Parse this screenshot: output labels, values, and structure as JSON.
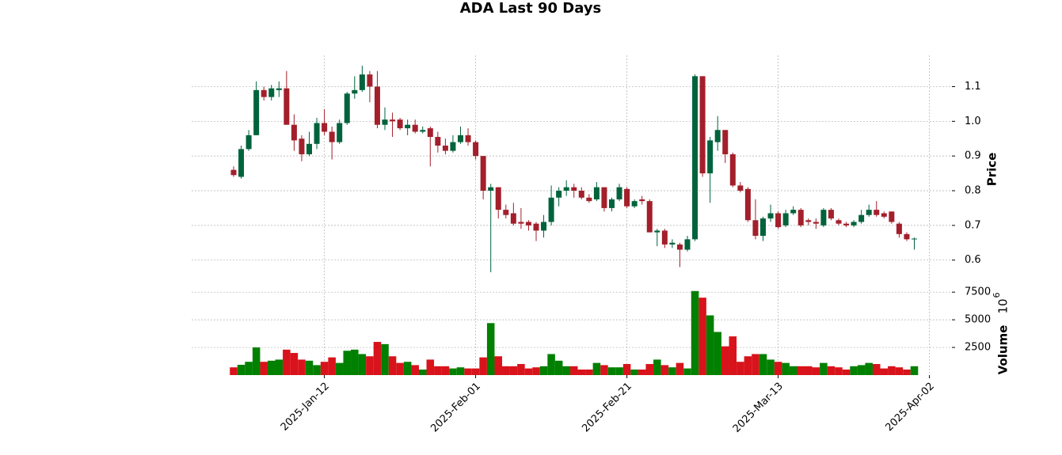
{
  "chart_data": {
    "type": "candlestick",
    "title": "ADA Last 90 Days",
    "ylabel": "Price",
    "y2label": "Volume",
    "y2label_base": "10",
    "y2label_exponent": "6",
    "x": [
      "2024-12-31",
      "2025-01-01",
      "2025-01-02",
      "2025-01-03",
      "2025-01-04",
      "2025-01-05",
      "2025-01-06",
      "2025-01-07",
      "2025-01-08",
      "2025-01-09",
      "2025-01-10",
      "2025-01-11",
      "2025-01-12",
      "2025-01-13",
      "2025-01-14",
      "2025-01-15",
      "2025-01-16",
      "2025-01-17",
      "2025-01-18",
      "2025-01-19",
      "2025-01-20",
      "2025-01-21",
      "2025-01-22",
      "2025-01-23",
      "2025-01-24",
      "2025-01-25",
      "2025-01-26",
      "2025-01-27",
      "2025-01-28",
      "2025-01-29",
      "2025-01-30",
      "2025-01-31",
      "2025-02-01",
      "2025-02-02",
      "2025-02-03",
      "2025-02-04",
      "2025-02-05",
      "2025-02-06",
      "2025-02-07",
      "2025-02-08",
      "2025-02-09",
      "2025-02-10",
      "2025-02-11",
      "2025-02-12",
      "2025-02-13",
      "2025-02-14",
      "2025-02-15",
      "2025-02-16",
      "2025-02-17",
      "2025-02-18",
      "2025-02-19",
      "2025-02-20",
      "2025-02-21",
      "2025-02-22",
      "2025-02-23",
      "2025-02-24",
      "2025-02-25",
      "2025-02-26",
      "2025-02-27",
      "2025-02-28",
      "2025-03-01",
      "2025-03-02",
      "2025-03-03",
      "2025-03-04",
      "2025-03-05",
      "2025-03-06",
      "2025-03-07",
      "2025-03-08",
      "2025-03-09",
      "2025-03-10",
      "2025-03-11",
      "2025-03-12",
      "2025-03-13",
      "2025-03-14",
      "2025-03-15",
      "2025-03-16",
      "2025-03-17",
      "2025-03-18",
      "2025-03-19",
      "2025-03-20",
      "2025-03-21",
      "2025-03-22",
      "2025-03-23",
      "2025-03-24",
      "2025-03-25",
      "2025-03-26",
      "2025-03-27",
      "2025-03-28",
      "2025-03-29",
      "2025-03-30",
      "2025-03-31"
    ],
    "open": [
      0.86,
      0.84,
      0.92,
      0.96,
      1.09,
      1.07,
      1.09,
      1.095,
      0.99,
      0.95,
      0.905,
      0.935,
      0.995,
      0.97,
      0.94,
      0.995,
      1.08,
      1.09,
      1.135,
      1.1,
      0.99,
      1.005,
      1.005,
      0.98,
      0.99,
      0.97,
      0.98,
      0.955,
      0.93,
      0.915,
      0.94,
      0.96,
      0.94,
      0.9,
      0.8,
      0.81,
      0.745,
      0.735,
      0.71,
      0.71,
      0.705,
      0.685,
      0.71,
      0.78,
      0.8,
      0.81,
      0.8,
      0.78,
      0.775,
      0.81,
      0.75,
      0.775,
      0.805,
      0.755,
      0.775,
      0.77,
      0.68,
      0.685,
      0.645,
      0.645,
      0.63,
      0.66,
      1.13,
      0.85,
      0.94,
      0.975,
      0.905,
      0.815,
      0.805,
      0.715,
      0.67,
      0.72,
      0.735,
      0.7,
      0.735,
      0.745,
      0.715,
      0.71,
      0.7,
      0.745,
      0.715,
      0.705,
      0.7,
      0.71,
      0.73,
      0.745,
      0.735,
      0.74,
      0.705,
      0.675,
      0.66
    ],
    "high": [
      0.87,
      0.93,
      0.975,
      1.115,
      1.1,
      1.105,
      1.115,
      1.145,
      1.02,
      0.96,
      0.97,
      1.01,
      1.035,
      0.985,
      1.005,
      1.085,
      1.13,
      1.16,
      1.145,
      1.145,
      1.04,
      1.025,
      1.01,
      1.005,
      1.005,
      0.985,
      0.985,
      0.97,
      0.95,
      0.96,
      0.985,
      0.98,
      0.945,
      0.9,
      0.82,
      0.81,
      0.76,
      0.765,
      0.75,
      0.715,
      0.71,
      0.73,
      0.815,
      0.81,
      0.83,
      0.82,
      0.81,
      0.79,
      0.825,
      0.81,
      0.78,
      0.82,
      0.81,
      0.775,
      0.785,
      0.775,
      0.69,
      0.69,
      0.66,
      0.65,
      0.67,
      1.135,
      1.13,
      0.955,
      1.015,
      0.975,
      0.91,
      0.825,
      0.81,
      0.775,
      0.725,
      0.76,
      0.74,
      0.745,
      0.755,
      0.75,
      0.72,
      0.72,
      0.75,
      0.75,
      0.72,
      0.71,
      0.715,
      0.745,
      0.76,
      0.77,
      0.74,
      0.74,
      0.71,
      0.68,
      0.665
    ],
    "low": [
      0.84,
      0.835,
      0.915,
      0.96,
      1.06,
      1.06,
      1.07,
      0.99,
      0.915,
      0.885,
      0.9,
      0.92,
      0.96,
      0.89,
      0.935,
      0.99,
      1.065,
      1.085,
      1.055,
      0.98,
      0.975,
      0.955,
      0.975,
      0.96,
      0.965,
      0.965,
      0.87,
      0.91,
      0.905,
      0.91,
      0.935,
      0.93,
      0.89,
      0.775,
      0.565,
      0.72,
      0.72,
      0.7,
      0.69,
      0.685,
      0.655,
      0.665,
      0.7,
      0.755,
      0.785,
      0.78,
      0.775,
      0.765,
      0.77,
      0.74,
      0.74,
      0.77,
      0.75,
      0.75,
      0.76,
      0.68,
      0.64,
      0.635,
      0.635,
      0.58,
      0.625,
      0.655,
      0.84,
      0.765,
      0.915,
      0.88,
      0.81,
      0.795,
      0.71,
      0.66,
      0.655,
      0.71,
      0.69,
      0.695,
      0.73,
      0.695,
      0.7,
      0.69,
      0.695,
      0.715,
      0.7,
      0.695,
      0.695,
      0.705,
      0.725,
      0.725,
      0.72,
      0.705,
      0.665,
      0.655,
      0.63
    ],
    "close": [
      0.845,
      0.92,
      0.96,
      1.09,
      1.07,
      1.095,
      1.095,
      0.99,
      0.945,
      0.905,
      0.935,
      0.995,
      0.97,
      0.94,
      0.995,
      1.08,
      1.09,
      1.135,
      1.1,
      0.99,
      1.005,
      1.0,
      0.98,
      0.99,
      0.97,
      0.975,
      0.955,
      0.93,
      0.915,
      0.94,
      0.96,
      0.94,
      0.9,
      0.8,
      0.81,
      0.745,
      0.73,
      0.705,
      0.705,
      0.7,
      0.685,
      0.71,
      0.78,
      0.8,
      0.81,
      0.8,
      0.78,
      0.77,
      0.81,
      0.75,
      0.775,
      0.81,
      0.755,
      0.77,
      0.77,
      0.68,
      0.685,
      0.645,
      0.65,
      0.63,
      0.66,
      1.13,
      0.85,
      0.945,
      0.975,
      0.905,
      0.815,
      0.8,
      0.715,
      0.67,
      0.72,
      0.735,
      0.695,
      0.735,
      0.745,
      0.7,
      0.71,
      0.705,
      0.745,
      0.72,
      0.705,
      0.7,
      0.71,
      0.73,
      0.745,
      0.73,
      0.725,
      0.71,
      0.675,
      0.66,
      0.662
    ],
    "volume": [
      700,
      930,
      1200,
      2500,
      1200,
      1300,
      1400,
      2300,
      2000,
      1400,
      1300,
      900,
      1200,
      1600,
      1100,
      2200,
      2300,
      1900,
      1700,
      3000,
      2800,
      1700,
      1100,
      1200,
      900,
      500,
      1400,
      800,
      800,
      600,
      700,
      600,
      600,
      1600,
      4700,
      1700,
      800,
      800,
      1000,
      600,
      700,
      800,
      1900,
      1300,
      800,
      800,
      500,
      500,
      1100,
      900,
      700,
      700,
      1000,
      500,
      500,
      1000,
      1400,
      900,
      700,
      1100,
      600,
      7600,
      7000,
      5400,
      3900,
      2600,
      3500,
      1200,
      1700,
      1900,
      1900,
      1400,
      1200,
      1100,
      800,
      800,
      800,
      700,
      1100,
      800,
      700,
      500,
      800,
      900,
      1100,
      1000,
      600,
      800,
      700,
      500,
      800
    ],
    "up_color": "#00633c",
    "down_color": "#a31f2b",
    "volume_up_color": "#008000",
    "volume_down_color": "#d8131b",
    "ylim": [
      0.54,
      1.19
    ],
    "yticks": [
      0.6,
      0.7,
      0.8,
      0.9,
      {
        "value": 1,
        "label": "1.0"
      },
      1.1
    ],
    "y2lim": [
      0,
      8300
    ],
    "y2ticks": [
      2500,
      5000,
      7500
    ],
    "xticks": [
      {
        "value": "2025-01-12",
        "label": "2025-Jan-12"
      },
      {
        "value": "2025-02-01",
        "label": "2025-Feb-01"
      },
      {
        "value": "2025-02-21",
        "label": "2025-Feb-21"
      },
      {
        "value": "2025-03-13",
        "label": "2025-Mar-13"
      },
      {
        "value": "2025-04-02",
        "label": "2025-Apr-02"
      }
    ],
    "grid": true
  }
}
